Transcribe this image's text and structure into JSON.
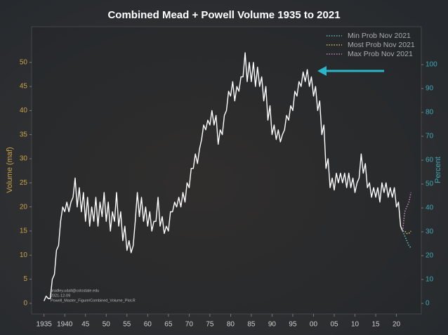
{
  "chart_data": {
    "type": "line",
    "title": "Combined Mead + Powell Volume 1935 to 2021",
    "ylabel": "Volume (maf)",
    "y2label": "Percent",
    "annotations": [
      "bradley.udall@colostate.edu",
      "2021-12-09",
      "Powell_Master_Figure/Combined_Volume_Plot.R"
    ],
    "xlim": [
      1932,
      2026
    ],
    "ylim": [
      -2.2,
      57.4
    ],
    "y2lim": [
      -4.4,
      115.9
    ],
    "xticks": [
      1935,
      1940,
      {
        "value": 1945,
        "label": "45"
      },
      {
        "value": 1950,
        "label": "50"
      },
      {
        "value": 1955,
        "label": "55"
      },
      {
        "value": 1960,
        "label": "60"
      },
      {
        "value": 1965,
        "label": "65"
      },
      {
        "value": 1970,
        "label": "70"
      },
      {
        "value": 1975,
        "label": "75"
      },
      {
        "value": 1980,
        "label": "80"
      },
      {
        "value": 1985,
        "label": "85"
      },
      {
        "value": 1990,
        "label": "90"
      },
      {
        "value": 1995,
        "label": "95"
      },
      {
        "value": 2000,
        "label": "00"
      },
      {
        "value": 2005,
        "label": "05"
      },
      {
        "value": 2010,
        "label": "10"
      },
      {
        "value": 2015,
        "label": "15"
      },
      {
        "value": 2020,
        "label": "20"
      }
    ],
    "yticks": [
      0,
      5,
      10,
      15,
      20,
      25,
      30,
      35,
      40,
      45,
      50
    ],
    "y2ticks": [
      0,
      10,
      20,
      30,
      40,
      50,
      60,
      70,
      80,
      90,
      100
    ],
    "grid": false,
    "legend": "upper right",
    "series": [
      {
        "color": "#ffffff",
        "x": [
          1935,
          1935.5,
          1936,
          1936.5,
          1937,
          1937.5,
          1938,
          1938.5,
          1939,
          1939.5,
          1940,
          1940.5,
          1941,
          1941.5,
          1942,
          1942.5,
          1943,
          1943.5,
          1944,
          1944.5,
          1945,
          1945.5,
          1946,
          1946.5,
          1947,
          1947.5,
          1948,
          1948.5,
          1949,
          1949.5,
          1950,
          1950.5,
          1951,
          1951.5,
          1952,
          1952.5,
          1953,
          1953.5,
          1954,
          1954.5,
          1955,
          1955.5,
          1956,
          1956.5,
          1957,
          1957.5,
          1958,
          1958.5,
          1959,
          1959.5,
          1960,
          1960.5,
          1961,
          1961.5,
          1962,
          1962.5,
          1963,
          1963.5,
          1964,
          1964.5,
          1965,
          1965.5,
          1966,
          1966.5,
          1967,
          1967.5,
          1968,
          1968.5,
          1969,
          1969.5,
          1970,
          1970.5,
          1971,
          1971.5,
          1972,
          1972.5,
          1973,
          1973.5,
          1974,
          1974.5,
          1975,
          1975.5,
          1976,
          1976.5,
          1977,
          1977.5,
          1978,
          1978.5,
          1979,
          1979.5,
          1980,
          1980.5,
          1981,
          1981.5,
          1982,
          1982.5,
          1983,
          1983.5,
          1984,
          1984.5,
          1985,
          1985.5,
          1986,
          1986.5,
          1987,
          1987.5,
          1988,
          1988.5,
          1989,
          1989.5,
          1990,
          1990.5,
          1991,
          1991.5,
          1992,
          1992.5,
          1993,
          1993.5,
          1994,
          1994.5,
          1995,
          1995.5,
          1996,
          1996.5,
          1997,
          1997.5,
          1998,
          1998.5,
          1999,
          1999.5,
          2000,
          2000.5,
          2001,
          2001.5,
          2002,
          2002.5,
          2003,
          2003.5,
          2004,
          2004.5,
          2005,
          2005.5,
          2006,
          2006.5,
          2007,
          2007.5,
          2008,
          2008.5,
          2009,
          2009.5,
          2010,
          2010.5,
          2011,
          2011.5,
          2012,
          2012.5,
          2013,
          2013.5,
          2014,
          2014.5,
          2015,
          2015.5,
          2016,
          2016.5,
          2017,
          2017.5,
          2018,
          2018.5,
          2019,
          2019.5,
          2020,
          2020.5,
          2021,
          2021.5
        ],
        "values": [
          0.5,
          1.5,
          1,
          1,
          5,
          6,
          11,
          12,
          17,
          20,
          19,
          21,
          19,
          21,
          22,
          26,
          20,
          24,
          19,
          23,
          17,
          22,
          16,
          20,
          17,
          22,
          16,
          21,
          18,
          23,
          17,
          21,
          15,
          19,
          17,
          23,
          16,
          19,
          13,
          16,
          11,
          13,
          10.5,
          12,
          17,
          23,
          18,
          22,
          17,
          20,
          16,
          19,
          15,
          17,
          17,
          22,
          16,
          18,
          14.5,
          16,
          15,
          19,
          19,
          21,
          20,
          22,
          20,
          23,
          21,
          25,
          24,
          28,
          28,
          31,
          29,
          32,
          34,
          37,
          36,
          38,
          37,
          40,
          37,
          39,
          33,
          36,
          35,
          39,
          40,
          44,
          43,
          46,
          42,
          45,
          44,
          47,
          47,
          52,
          46,
          50,
          46,
          50,
          45,
          49,
          45,
          47,
          42,
          45,
          38,
          41,
          35,
          37,
          34,
          36,
          33.5,
          35,
          36,
          39,
          38,
          41,
          40,
          44,
          43,
          46,
          45,
          48,
          46,
          48.5,
          45,
          47,
          43,
          45,
          40,
          42,
          35,
          37,
          28,
          30,
          24,
          26,
          23.5,
          27,
          25,
          27,
          25,
          27,
          24,
          27,
          24,
          26,
          23,
          25,
          26,
          31,
          27,
          29,
          24,
          25,
          22,
          24,
          22,
          24,
          21,
          25,
          23,
          25,
          22,
          24,
          22,
          24,
          20,
          21,
          16,
          15
        ]
      },
      {
        "name": "Min Prob Nov 2021",
        "color": "#5fb8b8",
        "x": [
          2021.5,
          2022,
          2022.5,
          2023,
          2023.5
        ],
        "values": [
          15,
          14,
          13,
          12,
          11.5
        ]
      },
      {
        "name": "Most Prob Nov 2021",
        "color": "#d2bc5a",
        "x": [
          2021.5,
          2022,
          2022.5,
          2023,
          2023.5
        ],
        "values": [
          15,
          15,
          14.5,
          14.5,
          15
        ]
      },
      {
        "name": "Max Prob Nov 2021",
        "color": "#b984b9",
        "x": [
          2021.5,
          2022,
          2022.5,
          2023,
          2023.5
        ],
        "values": [
          15,
          19,
          20,
          21,
          23
        ]
      }
    ]
  }
}
